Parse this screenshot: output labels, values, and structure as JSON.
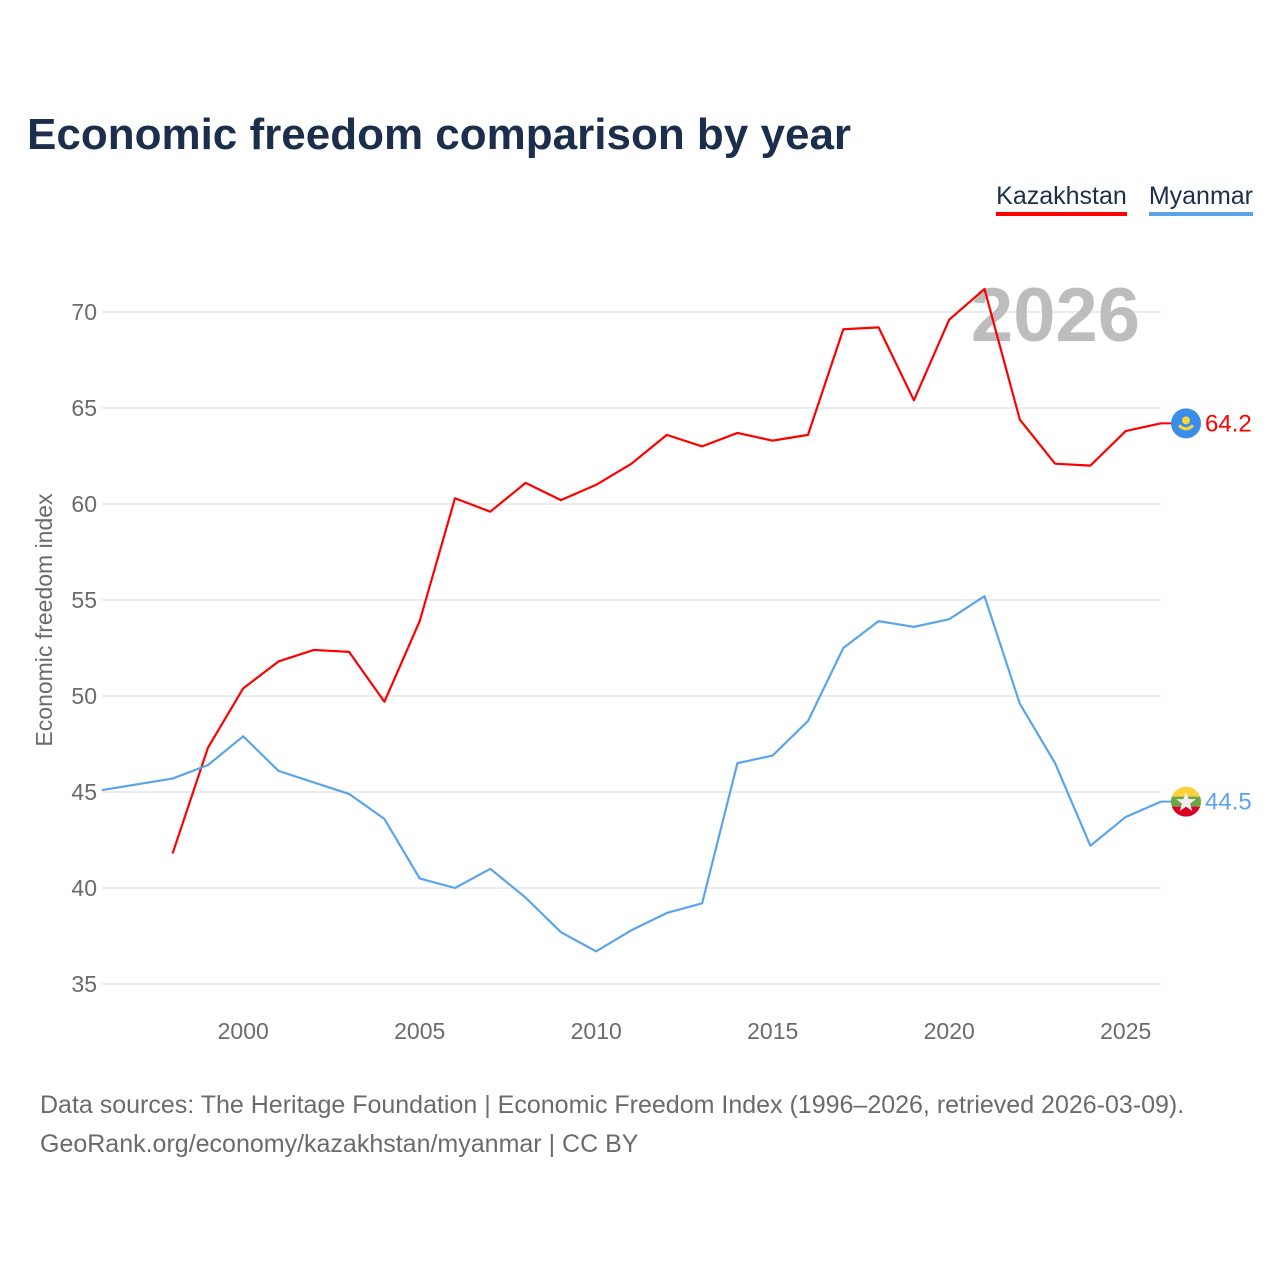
{
  "title": "Economic freedom comparison by year",
  "year_watermark": "2026",
  "source_line1": "Data sources: The Heritage Foundation | Economic Freedom Index (1996–2026, retrieved 2026-03-09).",
  "source_line2": "GeoRank.org/economy/kazakhstan/myanmar | CC BY",
  "chart_data": {
    "type": "line",
    "title": "Economic freedom comparison by year",
    "xlabel": "",
    "ylabel": "Economic freedom index",
    "xlim": [
      1996,
      2026
    ],
    "ylim": [
      35,
      72
    ],
    "xticks": [
      2000,
      2005,
      2010,
      2015,
      2020,
      2025
    ],
    "yticks": [
      35,
      40,
      45,
      50,
      55,
      60,
      65,
      70
    ],
    "grid": true,
    "legend_position": "top-right",
    "series": [
      {
        "name": "Kazakhstan",
        "color": "#ff0000",
        "end_label": "64.2",
        "x": [
          1998,
          1999,
          2000,
          2001,
          2002,
          2003,
          2004,
          2005,
          2006,
          2007,
          2008,
          2009,
          2010,
          2011,
          2012,
          2013,
          2014,
          2015,
          2016,
          2017,
          2018,
          2019,
          2020,
          2021,
          2022,
          2023,
          2024,
          2025,
          2026
        ],
        "values": [
          41.8,
          47.3,
          50.4,
          51.8,
          52.4,
          52.3,
          49.7,
          53.9,
          60.3,
          59.6,
          61.1,
          60.2,
          61.0,
          62.1,
          63.6,
          63.0,
          63.7,
          63.3,
          63.6,
          69.1,
          69.2,
          65.4,
          69.6,
          71.2,
          64.4,
          62.1,
          62.0,
          63.8,
          64.2
        ]
      },
      {
        "name": "Myanmar",
        "color": "#5ba4ec",
        "end_label": "44.5",
        "x": [
          1996,
          1997,
          1998,
          1999,
          2000,
          2001,
          2002,
          2003,
          2004,
          2005,
          2006,
          2007,
          2008,
          2009,
          2010,
          2011,
          2012,
          2013,
          2014,
          2015,
          2016,
          2017,
          2018,
          2019,
          2020,
          2021,
          2022,
          2023,
          2024,
          2025,
          2026
        ],
        "values": [
          45.1,
          45.4,
          45.7,
          46.4,
          47.9,
          46.1,
          45.5,
          44.9,
          43.6,
          40.5,
          40.0,
          41.0,
          39.5,
          37.7,
          36.7,
          37.8,
          38.7,
          39.2,
          46.5,
          46.9,
          48.7,
          52.5,
          53.9,
          53.6,
          54.0,
          55.2,
          49.6,
          46.5,
          42.2,
          43.7,
          44.5
        ]
      }
    ]
  }
}
